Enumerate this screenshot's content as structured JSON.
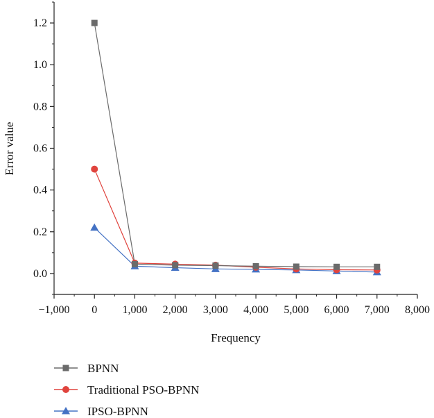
{
  "chart_data": {
    "type": "line",
    "xlabel": "Frequency",
    "ylabel": "Error value",
    "xlim": [
      -1000,
      8000
    ],
    "ylim": [
      -0.1,
      1.3
    ],
    "x_ticks": [
      -1000,
      0,
      1000,
      2000,
      3000,
      4000,
      5000,
      6000,
      7000,
      8000
    ],
    "x_tick_labels": [
      "−1,000",
      "0",
      "1,000",
      "2,000",
      "3,000",
      "4,000",
      "5,000",
      "6,000",
      "7,000",
      "8,000"
    ],
    "y_ticks": [
      0.0,
      0.2,
      0.4,
      0.6,
      0.8,
      1.0,
      1.2
    ],
    "y_tick_labels": [
      "0.0",
      "0.2",
      "0.4",
      "0.6",
      "0.8",
      "1.0",
      "1.2"
    ],
    "grid": false,
    "legend_position": "bottom",
    "x": [
      0,
      1000,
      2000,
      3000,
      4000,
      5000,
      6000,
      7000
    ],
    "series": [
      {
        "name": "BPNN",
        "marker": "square",
        "color": "#6b6b6b",
        "values": [
          1.2,
          0.045,
          0.04,
          0.038,
          0.035,
          0.033,
          0.032,
          0.032
        ]
      },
      {
        "name": "Traditional PSO-BPNN",
        "marker": "circle",
        "color": "#e0443e",
        "values": [
          0.5,
          0.05,
          0.045,
          0.04,
          0.03,
          0.022,
          0.018,
          0.017
        ]
      },
      {
        "name": "IPSO-BPNN",
        "marker": "triangle",
        "color": "#4472c4",
        "values": [
          0.22,
          0.035,
          0.028,
          0.022,
          0.02,
          0.017,
          0.012,
          0.007
        ]
      }
    ]
  }
}
